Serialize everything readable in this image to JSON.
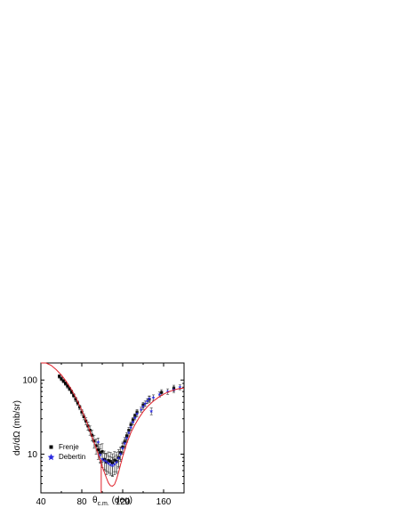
{
  "chart_data": {
    "type": "scatter",
    "xlabel_main": "θ",
    "xlabel_sub": "c.m.",
    "xlabel_tail": " (deg)",
    "ylabel": "dσ/dΩ (mb/sr)",
    "xlim": [
      40,
      180
    ],
    "ylim": [
      3,
      170
    ],
    "yscale": "log",
    "x_ticks": [
      40,
      80,
      120,
      160
    ],
    "y_ticks": [
      10,
      100
    ],
    "legend_position": "bottom-left",
    "series": [
      {
        "name": "Frenje",
        "color": "#000000",
        "marker": "square",
        "points": [
          [
            58,
            112,
            6
          ],
          [
            60,
            104,
            6
          ],
          [
            62,
            97,
            5
          ],
          [
            64,
            90,
            5
          ],
          [
            66,
            83,
            5
          ],
          [
            68,
            76,
            4
          ],
          [
            70,
            69,
            4
          ],
          [
            72,
            62,
            4
          ],
          [
            74,
            55,
            4
          ],
          [
            76,
            49,
            3
          ],
          [
            78,
            43,
            3
          ],
          [
            80,
            37,
            3
          ],
          [
            82,
            32,
            3
          ],
          [
            84,
            28,
            3
          ],
          [
            86,
            24,
            3
          ],
          [
            88,
            21,
            3
          ],
          [
            90,
            18,
            3
          ],
          [
            92,
            15,
            3
          ],
          [
            94,
            13,
            3
          ],
          [
            96,
            11.5,
            3
          ],
          [
            98,
            10.5,
            3
          ],
          [
            100,
            10.8,
            3
          ],
          [
            102,
            8.5,
            2.5
          ],
          [
            104,
            7.8,
            2.5
          ],
          [
            106,
            8.2,
            2.5
          ],
          [
            108,
            8.0,
            2.5
          ],
          [
            110,
            7.6,
            2.5
          ],
          [
            112,
            8.3,
            2.5
          ],
          [
            114,
            8.0,
            2.5
          ],
          [
            116,
            9.0,
            2.5
          ],
          [
            118,
            10.5,
            2
          ],
          [
            120,
            12.5,
            2
          ],
          [
            122,
            14.8,
            2
          ],
          [
            124,
            17.5,
            2
          ],
          [
            126,
            21,
            2
          ],
          [
            128,
            25,
            2
          ],
          [
            130,
            29,
            2
          ],
          [
            132,
            33,
            2
          ],
          [
            134,
            37,
            3
          ],
          [
            140,
            46,
            4
          ],
          [
            146,
            55,
            5
          ],
          [
            158,
            68,
            6
          ],
          [
            170,
            78,
            7
          ]
        ]
      },
      {
        "name": "Debertin",
        "color": "#2a2ae0",
        "marker": "star",
        "points": [
          [
            96,
            14.5,
            2
          ],
          [
            98,
            9.8,
            2
          ],
          [
            100,
            8.6,
            2
          ],
          [
            102,
            8.2,
            2
          ],
          [
            104,
            7.9,
            2
          ],
          [
            106,
            7.5,
            2
          ],
          [
            108,
            7.2,
            2
          ],
          [
            110,
            7.0,
            2
          ],
          [
            112,
            7.3,
            2
          ],
          [
            114,
            7.8,
            2
          ],
          [
            116,
            8.8,
            2
          ],
          [
            118,
            10.0,
            2
          ],
          [
            120,
            12.0,
            2
          ],
          [
            122,
            14.0,
            2
          ],
          [
            124,
            16.5,
            2
          ],
          [
            126,
            19.5,
            2
          ],
          [
            128,
            23,
            2
          ],
          [
            130,
            27,
            2
          ],
          [
            132,
            31,
            2
          ],
          [
            134,
            35,
            3
          ],
          [
            138,
            40,
            3
          ],
          [
            140,
            44,
            4
          ],
          [
            142,
            48,
            4
          ],
          [
            144,
            52,
            4
          ],
          [
            146,
            56,
            5
          ],
          [
            148,
            38,
            4
          ],
          [
            150,
            58,
            5
          ],
          [
            156,
            64,
            5
          ],
          [
            164,
            70,
            6
          ],
          [
            170,
            74,
            6
          ],
          [
            176,
            80,
            6
          ]
        ]
      },
      {
        "name": "",
        "color": "#e0202a",
        "line": true,
        "points": [
          [
            40,
            200
          ],
          [
            45,
            178
          ],
          [
            50,
            158
          ],
          [
            55,
            138
          ],
          [
            60,
            117
          ],
          [
            65,
            95
          ],
          [
            70,
            74
          ],
          [
            75,
            55
          ],
          [
            80,
            39
          ],
          [
            85,
            26.5
          ],
          [
            90,
            17.2
          ],
          [
            95,
            11
          ],
          [
            100,
            6.8
          ],
          [
            104,
            4.8
          ],
          [
            106,
            4.1
          ],
          [
            108,
            3.75
          ],
          [
            110,
            3.7
          ],
          [
            112,
            3.9
          ],
          [
            114,
            4.6
          ],
          [
            116,
            5.7
          ],
          [
            118,
            7.3
          ],
          [
            120,
            9.3
          ],
          [
            124,
            14
          ],
          [
            128,
            19.5
          ],
          [
            132,
            25
          ],
          [
            136,
            31
          ],
          [
            140,
            37.5
          ],
          [
            145,
            45
          ],
          [
            150,
            52
          ],
          [
            155,
            58.5
          ],
          [
            160,
            64.5
          ],
          [
            165,
            69.5
          ],
          [
            170,
            73.5
          ],
          [
            175,
            76.5
          ],
          [
            180,
            78
          ]
        ]
      }
    ],
    "marker_line": {
      "x": 99,
      "y_from": 3,
      "y_to": 8.5
    }
  }
}
